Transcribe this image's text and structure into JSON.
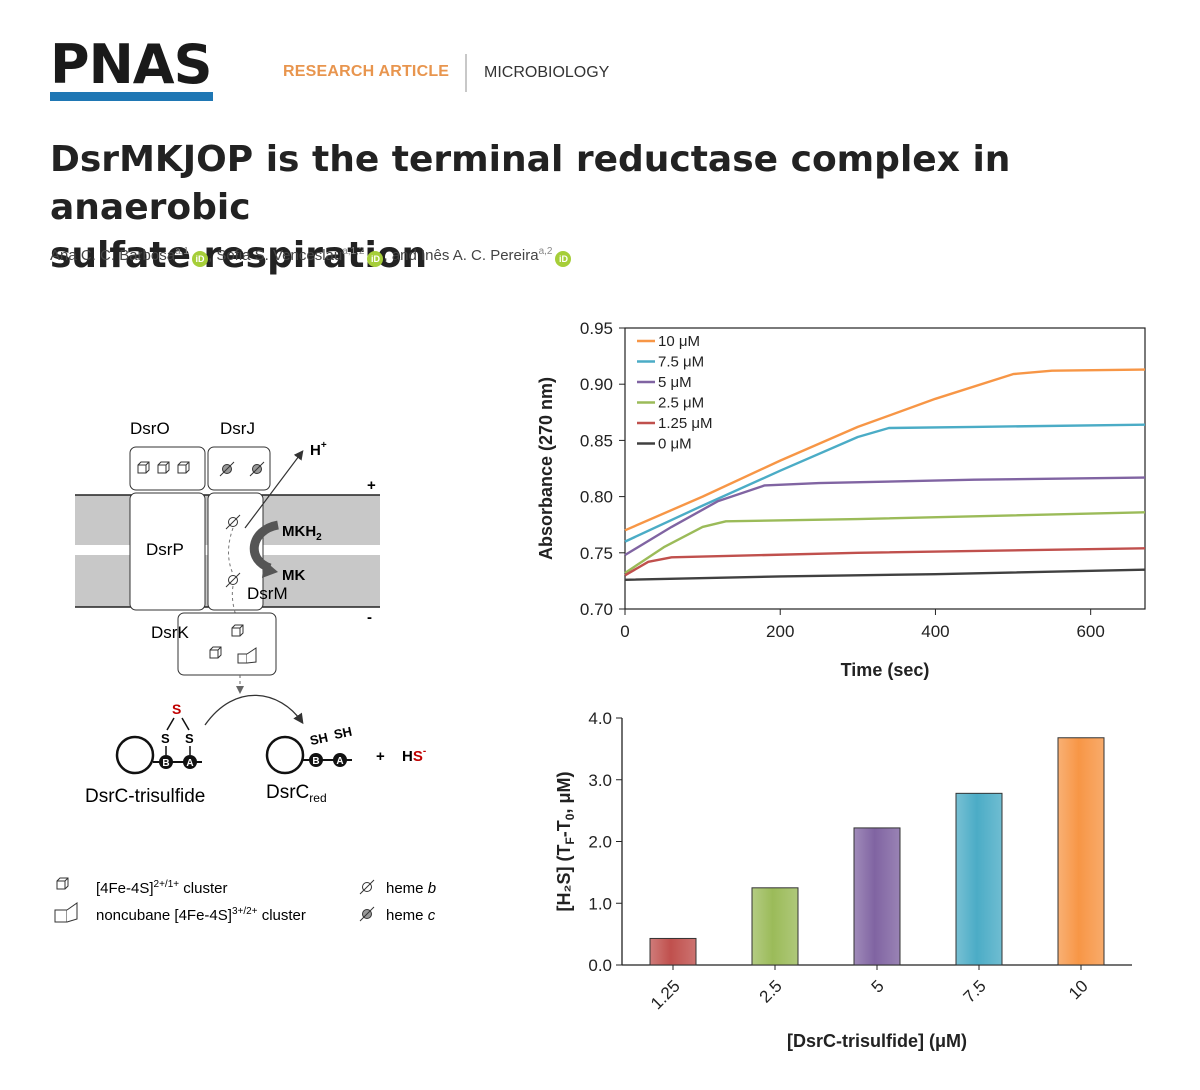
{
  "header": {
    "logo": "PNAS",
    "article_type": "RESEARCH ARTICLE",
    "subject": "MICROBIOLOGY",
    "colors": {
      "logo_bar": "#1f77b4",
      "article_type": "#e8954e"
    }
  },
  "article": {
    "title_line1": "DsrMKJOP is the terminal reductase complex in anaerobic",
    "title_line2": "sulfate respiration",
    "authors": [
      {
        "name": "Ana C. C. Barbosa",
        "affil": "a,1",
        "sep": ", "
      },
      {
        "name": "Sofia S. Venceslau",
        "affil": "a,1,2",
        "sep": ", and "
      },
      {
        "name": "Inês A. C. Pereira",
        "affil": "a,2",
        "sep": ""
      }
    ],
    "orcid_label": "iD"
  },
  "diagram": {
    "labels": {
      "dsro": "DsrO",
      "dsrj": "DsrJ",
      "dsrp": "DsrP",
      "dsrm": "DsrM",
      "dsrk": "DsrK",
      "h_plus": "H",
      "h_plus_sup": "+",
      "mkh2": "MKH",
      "mkh2_sub": "2",
      "mk": "MK",
      "plus_side": "+",
      "minus_side": "-",
      "trisulfide_s": "S",
      "s_left": "S",
      "s_right": "S",
      "cys_b": "B",
      "cys_a": "A",
      "sh_left": "SH",
      "sh_right": "SH",
      "plus_sign": "+",
      "hs_h": "H",
      "hs_s": "S",
      "hs_minus": "-",
      "dsrc_trisulfide": "DsrC-trisulfide",
      "dsrc_red": "DsrC",
      "dsrc_red_sub": "red"
    },
    "legend": [
      {
        "icon": "cube-icon",
        "text": "[4Fe-4S]",
        "sup": "2+/1+",
        "suffix": " cluster"
      },
      {
        "icon": "noncubane-icon",
        "text": "noncubane [4Fe-4S]",
        "sup": "3+/2+",
        "suffix": " cluster"
      },
      {
        "icon": "heme-b-icon",
        "text": "heme ",
        "ital": "b"
      },
      {
        "icon": "heme-c-icon",
        "text": "heme ",
        "ital": "c"
      }
    ],
    "colors": {
      "membrane": "#c8c8c8",
      "sulfur": "#c00000"
    }
  },
  "chart_data": [
    {
      "type": "line",
      "title": "",
      "xlabel": "Time (sec)",
      "ylabel": "Absorbance (270 nm)",
      "xlim": [
        0,
        670
      ],
      "ylim": [
        0.7,
        0.95
      ],
      "xticks": [
        "0",
        "200",
        "400",
        "600"
      ],
      "yticks": [
        "0.70",
        "0.75",
        "0.80",
        "0.85",
        "0.90",
        "0.95"
      ],
      "legend_position": "top-left",
      "series": [
        {
          "name": "10  μM",
          "color": "#f79646",
          "x": [
            0,
            100,
            200,
            300,
            400,
            500,
            550,
            670
          ],
          "y": [
            0.77,
            0.8,
            0.832,
            0.862,
            0.887,
            0.909,
            0.912,
            0.913
          ]
        },
        {
          "name": "7.5  μM",
          "color": "#4bacc6",
          "x": [
            0,
            100,
            200,
            300,
            340,
            450,
            670
          ],
          "y": [
            0.76,
            0.792,
            0.823,
            0.853,
            0.861,
            0.862,
            0.864
          ]
        },
        {
          "name": "5  μM",
          "color": "#8064a2",
          "x": [
            0,
            60,
            120,
            180,
            250,
            450,
            670
          ],
          "y": [
            0.748,
            0.773,
            0.796,
            0.81,
            0.812,
            0.815,
            0.817
          ]
        },
        {
          "name": "2.5  μM",
          "color": "#9bbb59",
          "x": [
            0,
            50,
            100,
            130,
            300,
            670
          ],
          "y": [
            0.732,
            0.755,
            0.773,
            0.778,
            0.78,
            0.786
          ]
        },
        {
          "name": "1.25  μM",
          "color": "#c0504d",
          "x": [
            0,
            30,
            60,
            300,
            670
          ],
          "y": [
            0.73,
            0.742,
            0.746,
            0.75,
            0.754
          ]
        },
        {
          "name": "0 μM",
          "color": "#404040",
          "x": [
            0,
            200,
            400,
            670
          ],
          "y": [
            0.726,
            0.729,
            0.731,
            0.735
          ]
        }
      ]
    },
    {
      "type": "bar",
      "title": "",
      "xlabel": "[DsrC-trisulfide] (μM)",
      "ylabel": "[H₂S] (T",
      "ylabel_sub1": "F",
      "ylabel_mid": "-T",
      "ylabel_sub2": "0",
      "ylabel_end": ", μM)",
      "ylim": [
        0,
        4.0
      ],
      "yticks": [
        "0.0",
        "1.0",
        "2.0",
        "3.0",
        "4.0"
      ],
      "categories": [
        "1.25",
        "2.5",
        "5",
        "7.5",
        "10"
      ],
      "values": [
        0.43,
        1.25,
        2.22,
        2.78,
        3.68
      ],
      "colors": [
        "#c0504d",
        "#9bbb59",
        "#8064a2",
        "#4bacc6",
        "#f79646"
      ]
    }
  ]
}
